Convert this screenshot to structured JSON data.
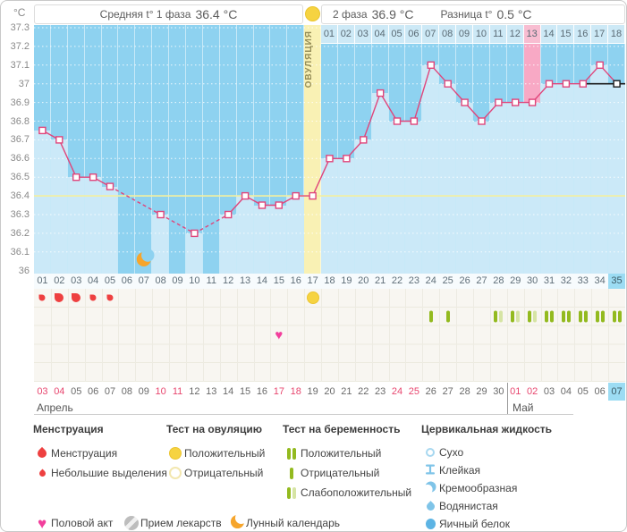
{
  "colors": {
    "plot_bg": "#8ed2f0",
    "fill": "#cbe9f8",
    "line": "#e0457b",
    "marker_current": "#1b1b1b",
    "coverline": "#f3ef9f",
    "ovulation_band": "#f9f1b4",
    "period_band": "#f8a9c5",
    "period_cell": "#f8bdd1",
    "phase2_row_bg": "#cde9f6",
    "highlight_blue": "#9cdcf3",
    "drop_red": "#ee4040",
    "test_green": "#93ba1f",
    "test_green_pale": "#d6e4a4",
    "heart_pink": "#f23f9c",
    "moon_orange": "#f6a52c",
    "cf_blue": "#7fc4e8",
    "weekend_red": "#e8476f"
  },
  "header": {
    "y_unit": "°C",
    "phase1_label": "Средняя t° 1 фаза",
    "phase1_value": "36.4 °C",
    "phase2_label": "2 фаза",
    "phase2_value": "36.9 °C",
    "diff_label": "Разница t°",
    "diff_value": "0.5 °C"
  },
  "chart_data": {
    "type": "line",
    "ylabel": "°C",
    "ylim": [
      36,
      37.3
    ],
    "y_ticks": [
      "37.3",
      "37.2",
      "37.1",
      "37",
      "36.9",
      "36.8",
      "36.7",
      "36.6",
      "36.5",
      "36.4",
      "36.3",
      "36.2",
      "36.1",
      "36"
    ],
    "day_labels": [
      "01",
      "02",
      "03",
      "04",
      "05",
      "06",
      "07",
      "08",
      "09",
      "10",
      "11",
      "12",
      "13",
      "14",
      "15",
      "16",
      "17",
      "18",
      "19",
      "20",
      "21",
      "22",
      "23",
      "24",
      "25",
      "26",
      "27",
      "28",
      "29",
      "30",
      "31",
      "32",
      "33",
      "34",
      "35"
    ],
    "temps": [
      36.75,
      36.7,
      36.5,
      36.5,
      36.45,
      null,
      null,
      36.3,
      null,
      36.2,
      null,
      36.3,
      36.4,
      36.35,
      36.35,
      36.4,
      36.4,
      36.6,
      36.6,
      36.7,
      36.95,
      36.8,
      36.8,
      37.1,
      37,
      36.9,
      36.8,
      36.9,
      36.9,
      36.9,
      37,
      37,
      37,
      37.1,
      37
    ],
    "missing_days": [
      6,
      7,
      9,
      11
    ],
    "coverline": 36.4,
    "ovulation_day": 17,
    "ovulation_band_label": "ОВУЛЯЦИЯ",
    "expected_period_day": 30,
    "current_day": 35,
    "phase2_labels": [
      "01",
      "02",
      "03",
      "04",
      "05",
      "06",
      "07",
      "08",
      "09",
      "10",
      "11",
      "12",
      "13",
      "14",
      "15",
      "16",
      "17",
      "18"
    ],
    "phase2_highlighted": "13"
  },
  "events": {
    "menstruation": [
      {
        "day": 1,
        "size": "small"
      },
      {
        "day": 2,
        "size": "large"
      },
      {
        "day": 3,
        "size": "large"
      },
      {
        "day": 4,
        "size": "small"
      },
      {
        "day": 5,
        "size": "small"
      }
    ],
    "ovulation_test": [
      {
        "day": 17,
        "result": "positive"
      }
    ],
    "lunar": [
      {
        "day": 7
      }
    ],
    "intercourse": [
      {
        "day": 15
      }
    ],
    "pregnancy_test": [
      {
        "day": 24,
        "result": "negative"
      },
      {
        "day": 25,
        "result": "negative"
      },
      {
        "day": 28,
        "result": "weak"
      },
      {
        "day": 29,
        "result": "weak"
      },
      {
        "day": 30,
        "result": "weak"
      },
      {
        "day": 31,
        "result": "positive"
      },
      {
        "day": 32,
        "result": "positive"
      },
      {
        "day": 33,
        "result": "positive"
      },
      {
        "day": 34,
        "result": "positive"
      },
      {
        "day": 35,
        "result": "positive"
      }
    ]
  },
  "dates": {
    "april_label": "Апрель",
    "may_label": "Май",
    "may_start_day": 29,
    "current_day": 35,
    "list": [
      {
        "d": "03",
        "we": true
      },
      {
        "d": "04",
        "we": true
      },
      {
        "d": "05",
        "we": false
      },
      {
        "d": "06",
        "we": false
      },
      {
        "d": "07",
        "we": false
      },
      {
        "d": "08",
        "we": false
      },
      {
        "d": "09",
        "we": false
      },
      {
        "d": "10",
        "we": true
      },
      {
        "d": "11",
        "we": true
      },
      {
        "d": "12",
        "we": false
      },
      {
        "d": "13",
        "we": false
      },
      {
        "d": "14",
        "we": false
      },
      {
        "d": "15",
        "we": false
      },
      {
        "d": "16",
        "we": false
      },
      {
        "d": "17",
        "we": true
      },
      {
        "d": "18",
        "we": true
      },
      {
        "d": "19",
        "we": false
      },
      {
        "d": "20",
        "we": false
      },
      {
        "d": "21",
        "we": false
      },
      {
        "d": "22",
        "we": false
      },
      {
        "d": "23",
        "we": false
      },
      {
        "d": "24",
        "we": true
      },
      {
        "d": "25",
        "we": true
      },
      {
        "d": "26",
        "we": false
      },
      {
        "d": "27",
        "we": false
      },
      {
        "d": "28",
        "we": false
      },
      {
        "d": "29",
        "we": false
      },
      {
        "d": "30",
        "we": false
      },
      {
        "d": "01",
        "we": true
      },
      {
        "d": "02",
        "we": true
      },
      {
        "d": "03",
        "we": false
      },
      {
        "d": "04",
        "we": false
      },
      {
        "d": "05",
        "we": false
      },
      {
        "d": "06",
        "we": false
      },
      {
        "d": "07",
        "we": false
      }
    ]
  },
  "legend": {
    "sections": [
      {
        "title": "Менструация",
        "items": [
          {
            "icon": "drop-large",
            "label": "Менструация"
          },
          {
            "icon": "drop-small",
            "label": "Небольшие выделения"
          }
        ]
      },
      {
        "title": "Тест на овуляцию",
        "items": [
          {
            "icon": "ovu-positive",
            "label": "Положительный"
          },
          {
            "icon": "ovu-negative",
            "label": "Отрицательный"
          }
        ]
      },
      {
        "title": "Тест на беременность",
        "items": [
          {
            "icon": "bars-positive",
            "label": "Положительный"
          },
          {
            "icon": "bars-negative",
            "label": "Отрицательный"
          },
          {
            "icon": "bars-weak",
            "label": "Слабоположительный"
          }
        ]
      },
      {
        "title": "Цервикальная жидкость",
        "items": [
          {
            "icon": "cf-dry",
            "label": "Сухо"
          },
          {
            "icon": "cf-sticky",
            "label": "Клейкая"
          },
          {
            "icon": "cf-creamy",
            "label": "Кремообразная"
          },
          {
            "icon": "cf-watery",
            "label": "Водянистая"
          },
          {
            "icon": "cf-eggwhite",
            "label": "Яичный белок"
          }
        ]
      }
    ],
    "footer": [
      {
        "icon": "heart",
        "label": "Половой акт"
      },
      {
        "icon": "med",
        "label": "Прием лекарств"
      },
      {
        "icon": "moon",
        "label": "Лунный календарь"
      }
    ]
  }
}
